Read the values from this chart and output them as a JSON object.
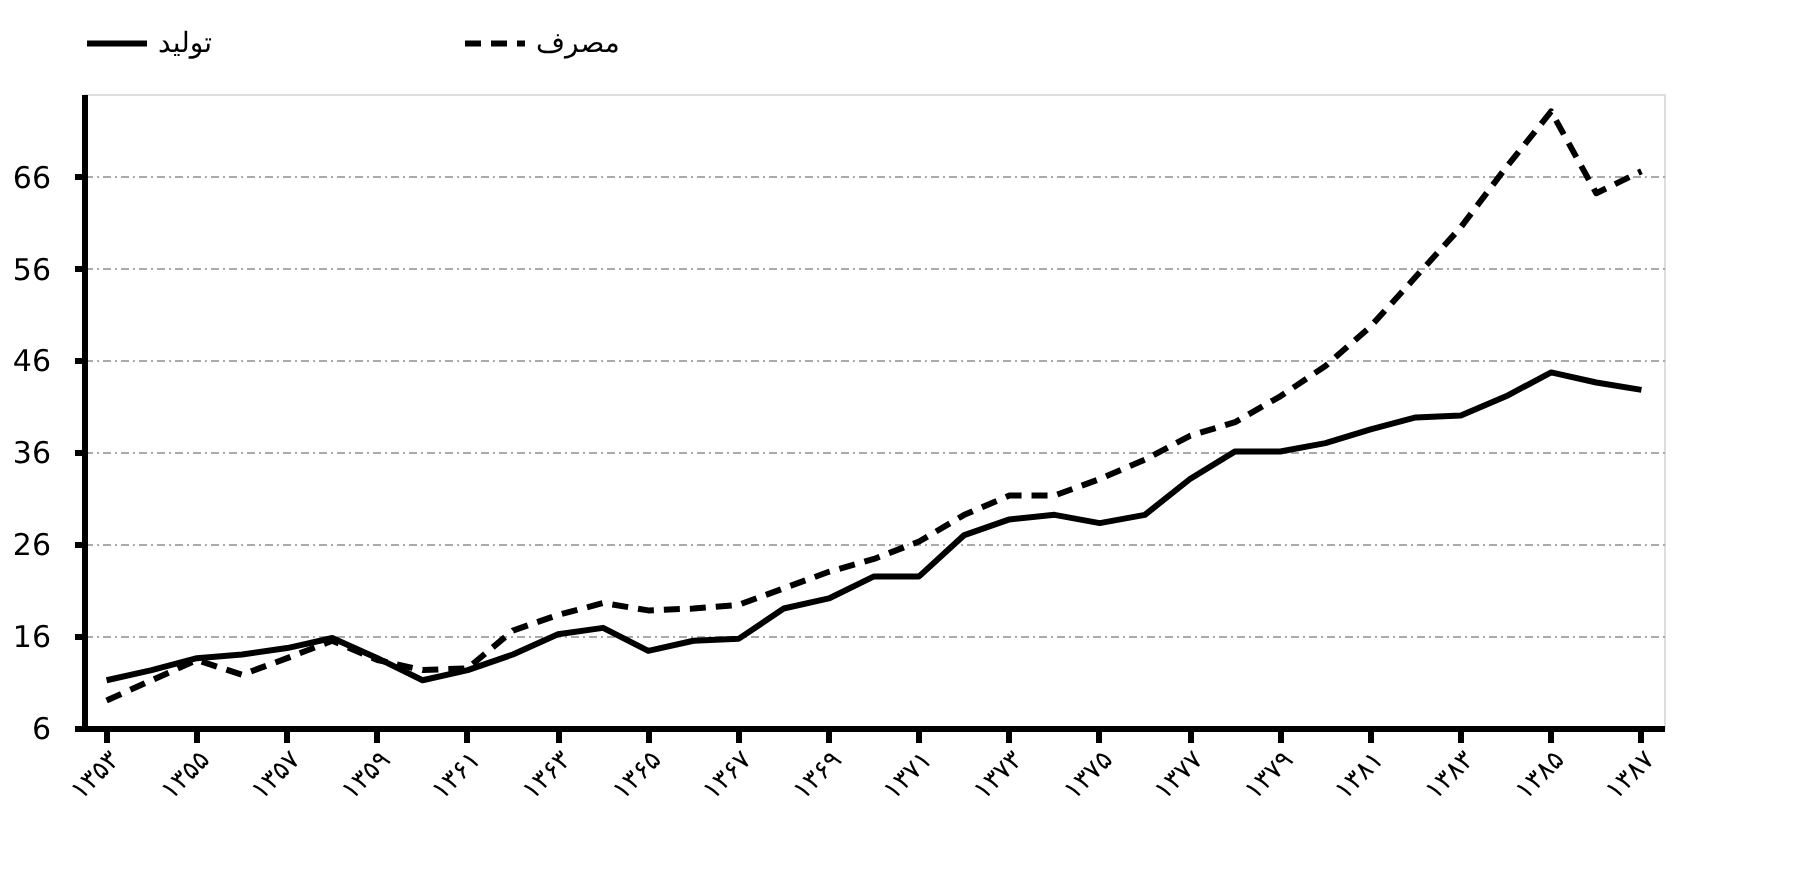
{
  "chart_data": {
    "type": "line",
    "categories": [
      "۱۳۵۳",
      null,
      "۱۳۵۵",
      null,
      "۱۳۵۷",
      null,
      "۱۳۵۹",
      null,
      "۱۳۶۱",
      null,
      "۱۳۶۳",
      null,
      "۱۳۶۵",
      null,
      "۱۳۶۷",
      null,
      "۱۳۶۹",
      null,
      "۱۳۷۱",
      null,
      "۱۳۷۳",
      null,
      "۱۳۷۵",
      null,
      "۱۳۷۷",
      null,
      "۱۳۷۹",
      null,
      "۱۳۸۱",
      null,
      "۱۳۸۳",
      null,
      "۱۳۸۵",
      null,
      "۱۳۸۷"
    ],
    "series": [
      {
        "name": "تولید",
        "color": "#000000",
        "line_style": "solid",
        "values": [
          11.2,
          12.3,
          13.6,
          14,
          14.7,
          15.8,
          13.6,
          11.2,
          12.3,
          14,
          16.2,
          16.9,
          14.4,
          15.5,
          15.7,
          19,
          20.1,
          22.5,
          22.5,
          27,
          28.7,
          29.2,
          28.3,
          29.2,
          33.1,
          36.1,
          36.1,
          37,
          38.5,
          39.8,
          40,
          42.1,
          44.7,
          43.6,
          42.8
        ]
      },
      {
        "name": "مصرف",
        "color": "#000000",
        "line_style": "dashed",
        "values": [
          9,
          11.2,
          13.4,
          11.8,
          13.6,
          15.5,
          13.4,
          12.3,
          12.5,
          16.6,
          18.3,
          19.6,
          18.8,
          19,
          19.4,
          21.2,
          23,
          24.4,
          26.3,
          29.2,
          31.3,
          31.3,
          33.1,
          35.2,
          37.8,
          39.3,
          42.1,
          45.4,
          49.7,
          55.1,
          60.5,
          67,
          73.1,
          64.2,
          66.6
        ]
      }
    ],
    "ylim": [
      6,
      75
    ],
    "yticks": [
      6,
      16,
      26,
      36,
      46,
      56,
      66
    ],
    "grid": "y",
    "legend": "top",
    "marker": "none"
  }
}
